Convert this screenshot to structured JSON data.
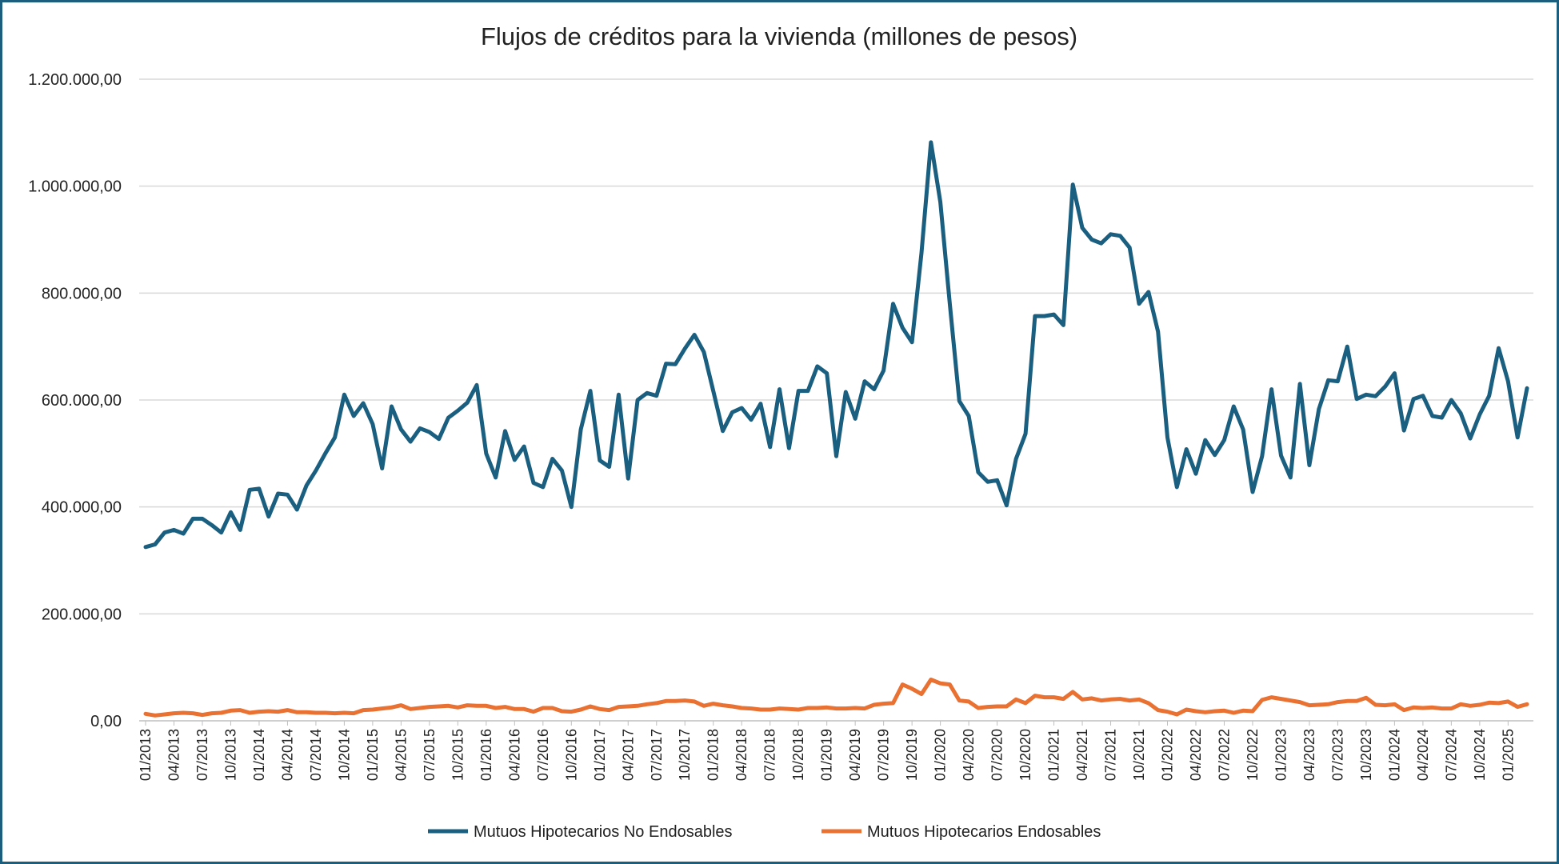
{
  "chart_data": {
    "type": "line",
    "title": "Flujos de créditos para la vivienda (millones de pesos)",
    "xlabel": "",
    "ylabel": "",
    "ylim": [
      0,
      1200000
    ],
    "yticks": [
      0,
      200000,
      400000,
      600000,
      800000,
      1000000,
      1200000
    ],
    "ytick_labels": [
      "0,00",
      "200.000,00",
      "400.000,00",
      "600.000,00",
      "800.000,00",
      "1.000.000,00",
      "1.200.000,00"
    ],
    "grid": true,
    "legend_position": "bottom",
    "x_start": "01/2013",
    "x_tick_every_months": 3,
    "series": [
      {
        "name": "Mutuos Hipotecarios No Endosables",
        "color": "#1a5f80",
        "values": [
          325000,
          330000,
          352000,
          357000,
          350000,
          378000,
          378000,
          366000,
          352000,
          390000,
          357000,
          432000,
          434000,
          382000,
          425000,
          423000,
          395000,
          440000,
          468000,
          500000,
          530000,
          610000,
          570000,
          594000,
          555000,
          472000,
          588000,
          545000,
          522000,
          547000,
          540000,
          527000,
          567000,
          580000,
          595000,
          628000,
          500000,
          455000,
          542000,
          488000,
          513000,
          445000,
          437000,
          490000,
          468000,
          400000,
          545000,
          617000,
          487000,
          475000,
          610000,
          453000,
          600000,
          613000,
          608000,
          668000,
          667000,
          696000,
          722000,
          690000,
          617000,
          542000,
          577000,
          585000,
          563000,
          593000,
          512000,
          620000,
          510000,
          617000,
          617000,
          663000,
          650000,
          495000,
          615000,
          565000,
          635000,
          620000,
          655000,
          780000,
          735000,
          708000,
          875000,
          1082000,
          970000,
          780000,
          598000,
          570000,
          465000,
          447000,
          450000,
          403000,
          490000,
          537000,
          757000,
          757000,
          760000,
          740000,
          1003000,
          922000,
          900000,
          893000,
          910000,
          907000,
          885000,
          780000,
          802000,
          728000,
          530000,
          437000,
          508000,
          462000,
          525000,
          497000,
          525000,
          588000,
          545000,
          428000,
          495000,
          620000,
          496000,
          455000,
          630000,
          478000,
          583000,
          637000,
          635000,
          700000,
          602000,
          610000,
          607000,
          625000,
          650000,
          543000,
          602000,
          608000,
          570000,
          567000,
          600000,
          575000,
          528000,
          573000,
          608000,
          697000,
          635000,
          530000,
          622000
        ]
      },
      {
        "name": "Mutuos Hipotecarios Endosables",
        "color": "#e97132",
        "values": [
          13000,
          10000,
          12000,
          14000,
          15000,
          14000,
          11000,
          14000,
          15000,
          19000,
          20000,
          15000,
          17000,
          18000,
          17000,
          20000,
          16000,
          16000,
          15000,
          15000,
          14000,
          15000,
          14000,
          20000,
          21000,
          23000,
          25000,
          29000,
          22000,
          24000,
          26000,
          27000,
          28000,
          25000,
          29000,
          28000,
          28000,
          24000,
          26000,
          22000,
          22000,
          17000,
          24000,
          24000,
          18000,
          17000,
          21000,
          27000,
          22000,
          20000,
          26000,
          27000,
          28000,
          31000,
          33000,
          37000,
          37000,
          38000,
          36000,
          28000,
          32000,
          29000,
          27000,
          24000,
          23000,
          21000,
          21000,
          23000,
          22000,
          21000,
          24000,
          24000,
          25000,
          23000,
          23000,
          24000,
          23000,
          30000,
          32000,
          33000,
          68000,
          60000,
          50000,
          77000,
          70000,
          68000,
          38000,
          36000,
          24000,
          26000,
          27000,
          27000,
          40000,
          33000,
          47000,
          44000,
          44000,
          41000,
          54000,
          40000,
          42000,
          38000,
          40000,
          41000,
          38000,
          40000,
          33000,
          20000,
          17000,
          12000,
          21000,
          18000,
          16000,
          18000,
          19000,
          15000,
          19000,
          18000,
          39000,
          44000,
          41000,
          38000,
          35000,
          29000,
          30000,
          31000,
          35000,
          37000,
          37000,
          43000,
          30000,
          29000,
          31000,
          20000,
          25000,
          24000,
          25000,
          23000,
          23000,
          31000,
          28000,
          30000,
          34000,
          33000,
          36000,
          26000,
          31000
        ]
      }
    ]
  }
}
